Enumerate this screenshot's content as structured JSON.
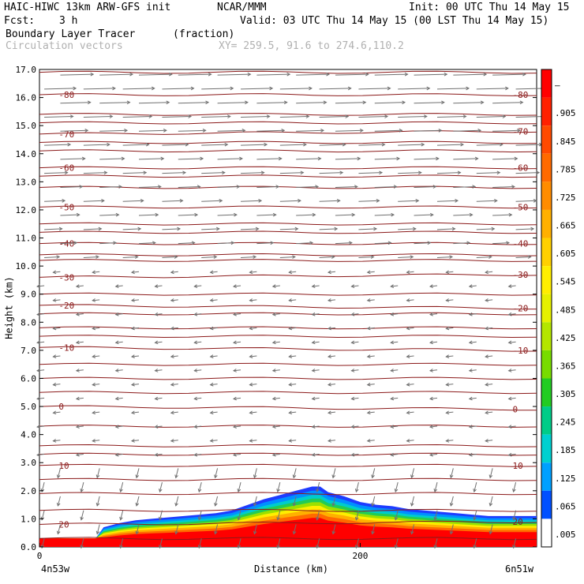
{
  "header": {
    "title_left": "HAIC-HIWC 13km ARW-GFS init",
    "org": "NCAR/MMM",
    "init": "Init: 00 UTC Thu 14 May 15",
    "fcst_label": "Fcst:",
    "fcst_value": "3 h",
    "valid": "Valid: 03 UTC Thu 14 May 15 (00 LST Thu 14 May 15)",
    "field_name": "Boundary Layer Tracer",
    "field_units": "(fraction)",
    "vector_label": "Circulation vectors",
    "xy_label": "XY= 259.5, 91.6 to 274.6,110.2"
  },
  "chart_data": {
    "type": "heatmap",
    "xlabel": "Distance (km)",
    "ylabel": "Height (km)",
    "xlim": [
      0,
      310
    ],
    "ylim": [
      0,
      17
    ],
    "x_ticks": [
      0,
      200
    ],
    "y_ticks": [
      "0.0",
      "1.0",
      "2.0",
      "3.0",
      "4.0",
      "5.0",
      "6.0",
      "7.0",
      "8.0",
      "9.0",
      "10.0",
      "11.0",
      "12.0",
      "13.0",
      "14.0",
      "15.0",
      "16.0",
      "17.0"
    ],
    "left_endpoint": "4n53w",
    "right_endpoint": "6n51w",
    "temperature_contours": [
      {
        "value": "-80",
        "height_left": 16.1,
        "height_right": 16.1
      },
      {
        "value": "-70",
        "height_left": 14.7,
        "height_right": 14.8
      },
      {
        "value": "-60",
        "height_left": 13.5,
        "height_right": 13.5
      },
      {
        "value": "-50",
        "height_left": 12.1,
        "height_right": 12.1
      },
      {
        "value": "-40",
        "height_left": 10.8,
        "height_right": 10.8
      },
      {
        "value": "-30",
        "height_left": 9.6,
        "height_right": 9.7
      },
      {
        "value": "-20",
        "height_left": 8.6,
        "height_right": 8.5
      },
      {
        "value": "-10",
        "height_left": 7.1,
        "height_right": 7.0
      },
      {
        "value": "0",
        "height_left": 5.0,
        "height_right": 4.9
      },
      {
        "value": "10",
        "height_left": 2.9,
        "height_right": 2.9
      },
      {
        "value": "20",
        "height_left": 0.8,
        "height_right": 0.9
      }
    ],
    "unlabeled_contour_heights": [
      16.9,
      15.4,
      15.1,
      14.4,
      14.1,
      13.2,
      12.8,
      11.5,
      11.2,
      10.4,
      10.2,
      9.0,
      8.3,
      7.8,
      7.5,
      6.5,
      6.0,
      5.5,
      4.3,
      3.6,
      3.3,
      2.4,
      1.9,
      1.3,
      0.3
    ],
    "tracer_top_profile": {
      "x": [
        0,
        35,
        40,
        50,
        60,
        70,
        80,
        90,
        100,
        110,
        120,
        130,
        140,
        150,
        160,
        170,
        175,
        180,
        190,
        200,
        210,
        220,
        230,
        240,
        250,
        260,
        270,
        280,
        290,
        300,
        310
      ],
      "top": [
        0.3,
        0.3,
        0.7,
        0.85,
        0.95,
        1.0,
        1.05,
        1.1,
        1.15,
        1.2,
        1.3,
        1.5,
        1.7,
        1.85,
        2.0,
        2.15,
        2.15,
        1.95,
        1.8,
        1.6,
        1.5,
        1.45,
        1.35,
        1.3,
        1.25,
        1.2,
        1.15,
        1.1,
        1.1,
        1.1,
        1.1
      ]
    },
    "colorbar": {
      "labels": [
        "–",
        ".905",
        ".845",
        ".785",
        ".725",
        ".665",
        ".605",
        ".545",
        ".485",
        ".425",
        ".365",
        ".305",
        ".245",
        ".185",
        ".125",
        ".065",
        ".005"
      ],
      "colors": [
        "#ff0000",
        "#ff2000",
        "#ff4a00",
        "#ff6a00",
        "#ff8c00",
        "#ffb000",
        "#ffd000",
        "#ffee00",
        "#e6f000",
        "#b4e600",
        "#78dc00",
        "#22cc22",
        "#00cc88",
        "#00d0d0",
        "#00a0ff",
        "#0050ff",
        "#ffffff"
      ]
    },
    "vectors": {
      "upper_direction": "east",
      "middle_direction": "west",
      "lower_direction": "south"
    }
  }
}
